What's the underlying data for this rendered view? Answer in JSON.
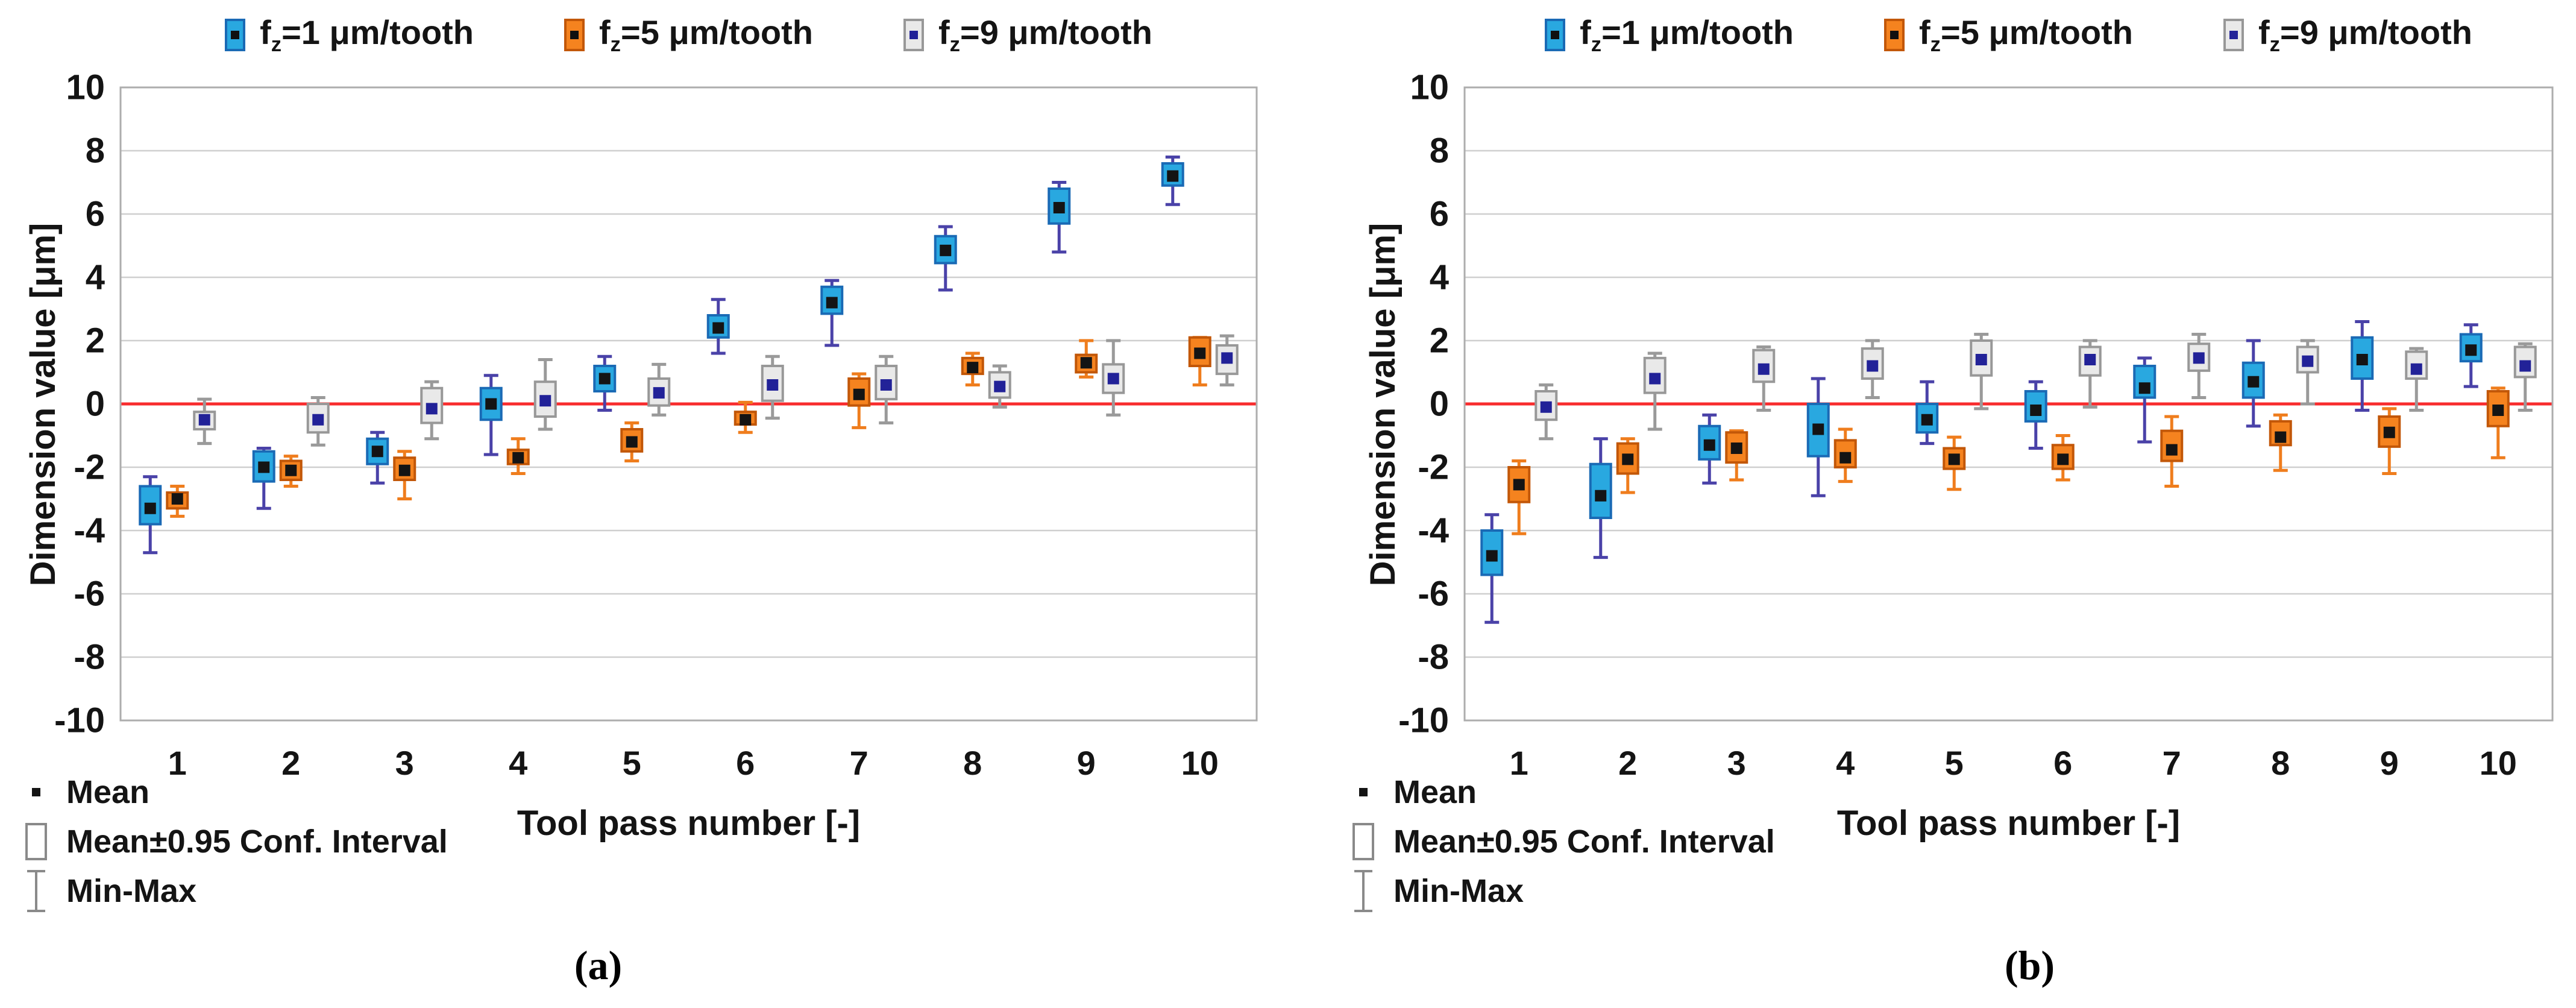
{
  "figure": {
    "captions": {
      "a": "(a)",
      "b": "(b)"
    },
    "colors": {
      "reference_line": "#f82c2e",
      "gridline": "#cfcfcf",
      "plot_border": "#adadad",
      "text": "#141414"
    }
  },
  "annotations": {
    "mean": "Mean",
    "ci": "Mean±0.95 Conf. Interval",
    "minmax": "Min-Max"
  },
  "chart_data": [
    {
      "type": "box",
      "panel": "a",
      "caption": "(a)",
      "xlabel": "Tool pass number [-]",
      "ylabel": "Dimension value [μm]",
      "ylim": [
        -10,
        10
      ],
      "yticks": [
        10,
        8,
        6,
        4,
        2,
        0,
        -2,
        -4,
        -6,
        -8,
        -10
      ],
      "xticks": [
        1,
        2,
        3,
        4,
        5,
        6,
        7,
        8,
        9,
        10
      ],
      "grid": "horizontal",
      "legend_position": "top",
      "reference_line_y": 0,
      "points_columns": [
        "pass",
        "mean",
        "ci_low",
        "ci_high",
        "min",
        "max"
      ],
      "series": [
        {
          "key": "fz1",
          "label_sym": "f",
          "label_sub": "z",
          "label_rest": "=1 μm/tooth",
          "fill": "#29a8e0",
          "edge": "#1a6ab5",
          "whisker": "#4a42a8",
          "mean_color": "#141414",
          "points": [
            [
              1,
              -3.3,
              -3.8,
              -2.6,
              -4.7,
              -2.3
            ],
            [
              2,
              -2.0,
              -2.45,
              -1.5,
              -3.3,
              -1.4
            ],
            [
              3,
              -1.5,
              -1.9,
              -1.1,
              -2.5,
              -0.9
            ],
            [
              4,
              0.0,
              -0.5,
              0.5,
              -1.6,
              0.9
            ],
            [
              5,
              0.8,
              0.4,
              1.2,
              -0.2,
              1.5
            ],
            [
              6,
              2.4,
              2.1,
              2.8,
              1.6,
              3.3
            ],
            [
              7,
              3.2,
              2.85,
              3.7,
              1.85,
              3.9
            ],
            [
              8,
              4.85,
              4.45,
              5.3,
              3.6,
              5.6
            ],
            [
              9,
              6.2,
              5.7,
              6.8,
              4.8,
              7.0
            ],
            [
              10,
              7.2,
              6.9,
              7.6,
              6.3,
              7.8
            ]
          ]
        },
        {
          "key": "fz5",
          "label_sym": "f",
          "label_sub": "z",
          "label_rest": "=5 μm/tooth",
          "fill": "#f5831f",
          "edge": "#c25708",
          "whisker": "#ef7d1d",
          "mean_color": "#141414",
          "points": [
            [
              1,
              -3.0,
              -3.3,
              -2.8,
              -3.55,
              -2.6
            ],
            [
              2,
              -2.1,
              -2.4,
              -1.8,
              -2.6,
              -1.65
            ],
            [
              3,
              -2.1,
              -2.4,
              -1.7,
              -3.0,
              -1.5
            ],
            [
              4,
              -1.7,
              -1.9,
              -1.45,
              -2.2,
              -1.1
            ],
            [
              5,
              -1.2,
              -1.5,
              -0.8,
              -1.8,
              -0.6
            ],
            [
              6,
              -0.5,
              -0.65,
              -0.25,
              -0.9,
              0.05
            ],
            [
              7,
              0.3,
              -0.05,
              0.8,
              -0.75,
              0.95
            ],
            [
              8,
              1.15,
              0.95,
              1.45,
              0.6,
              1.6
            ],
            [
              9,
              1.3,
              1.0,
              1.55,
              0.85,
              2.0
            ],
            [
              10,
              1.6,
              1.2,
              2.1,
              0.6,
              2.1
            ]
          ]
        },
        {
          "key": "fz9",
          "label_sym": "f",
          "label_sub": "z",
          "label_rest": "=9 μm/tooth",
          "fill": "#e9e9e9",
          "edge": "#989898",
          "whisker": "#9a9a9a",
          "mean_color": "#222298",
          "points": [
            [
              1,
              -0.5,
              -0.8,
              -0.25,
              -1.25,
              0.15
            ],
            [
              2,
              -0.5,
              -0.9,
              0.0,
              -1.3,
              0.2
            ],
            [
              3,
              -0.15,
              -0.6,
              0.5,
              -1.1,
              0.7
            ],
            [
              4,
              0.1,
              -0.4,
              0.7,
              -0.8,
              1.4
            ],
            [
              5,
              0.35,
              -0.05,
              0.8,
              -0.35,
              1.25
            ],
            [
              6,
              0.6,
              0.1,
              1.2,
              -0.45,
              1.5
            ],
            [
              7,
              0.6,
              0.15,
              1.2,
              -0.6,
              1.5
            ],
            [
              8,
              0.55,
              0.2,
              1.0,
              -0.1,
              1.2
            ],
            [
              9,
              0.8,
              0.35,
              1.25,
              -0.35,
              2.0
            ],
            [
              10,
              1.45,
              0.95,
              1.85,
              0.6,
              2.15
            ]
          ]
        }
      ]
    },
    {
      "type": "box",
      "panel": "b",
      "caption": "(b)",
      "xlabel": "Tool pass number [-]",
      "ylabel": "Dimension value [μm]",
      "ylim": [
        -10,
        10
      ],
      "yticks": [
        10,
        8,
        6,
        4,
        2,
        0,
        -2,
        -4,
        -6,
        -8,
        -10
      ],
      "xticks": [
        1,
        2,
        3,
        4,
        5,
        6,
        7,
        8,
        9,
        10
      ],
      "grid": "horizontal",
      "legend_position": "top",
      "reference_line_y": 0,
      "points_columns": [
        "pass",
        "mean",
        "ci_low",
        "ci_high",
        "min",
        "max"
      ],
      "series": [
        {
          "key": "fz1",
          "label_sym": "f",
          "label_sub": "z",
          "label_rest": "=1 μm/tooth",
          "fill": "#29a8e0",
          "edge": "#1a6ab5",
          "whisker": "#4a42a8",
          "mean_color": "#141414",
          "points": [
            [
              1,
              -4.8,
              -5.4,
              -4.0,
              -6.9,
              -3.5
            ],
            [
              2,
              -2.9,
              -3.6,
              -1.9,
              -4.85,
              -1.1
            ],
            [
              3,
              -1.3,
              -1.75,
              -0.7,
              -2.5,
              -0.35
            ],
            [
              4,
              -0.8,
              -1.65,
              0.0,
              -2.9,
              0.8
            ],
            [
              5,
              -0.5,
              -0.9,
              0.0,
              -1.25,
              0.7
            ],
            [
              6,
              -0.2,
              -0.55,
              0.4,
              -1.4,
              0.7
            ],
            [
              7,
              0.5,
              0.2,
              1.2,
              -1.2,
              1.45
            ],
            [
              8,
              0.7,
              0.2,
              1.3,
              -0.7,
              2.0
            ],
            [
              9,
              1.4,
              0.8,
              2.1,
              -0.2,
              2.6
            ],
            [
              10,
              1.7,
              1.35,
              2.2,
              0.55,
              2.5
            ]
          ]
        },
        {
          "key": "fz5",
          "label_sym": "f",
          "label_sub": "z",
          "label_rest": "=5 μm/tooth",
          "fill": "#f5831f",
          "edge": "#c25708",
          "whisker": "#ef7d1d",
          "mean_color": "#141414",
          "points": [
            [
              1,
              -2.55,
              -3.1,
              -2.0,
              -4.1,
              -1.8
            ],
            [
              2,
              -1.75,
              -2.2,
              -1.25,
              -2.8,
              -1.1
            ],
            [
              3,
              -1.4,
              -1.85,
              -0.9,
              -2.4,
              -0.85
            ],
            [
              4,
              -1.7,
              -2.0,
              -1.15,
              -2.45,
              -0.8
            ],
            [
              5,
              -1.75,
              -2.05,
              -1.4,
              -2.7,
              -1.05
            ],
            [
              6,
              -1.75,
              -2.05,
              -1.3,
              -2.4,
              -1.0
            ],
            [
              7,
              -1.45,
              -1.8,
              -0.85,
              -2.6,
              -0.4
            ],
            [
              8,
              -1.05,
              -1.3,
              -0.55,
              -2.1,
              -0.35
            ],
            [
              9,
              -0.9,
              -1.35,
              -0.4,
              -2.2,
              -0.15
            ],
            [
              10,
              -0.2,
              -0.7,
              0.4,
              -1.7,
              0.5
            ]
          ]
        },
        {
          "key": "fz9",
          "label_sym": "f",
          "label_sub": "z",
          "label_rest": "=9 μm/tooth",
          "fill": "#e9e9e9",
          "edge": "#989898",
          "whisker": "#9a9a9a",
          "mean_color": "#222298",
          "points": [
            [
              1,
              -0.1,
              -0.5,
              0.4,
              -1.1,
              0.6
            ],
            [
              2,
              0.8,
              0.35,
              1.45,
              -0.8,
              1.6
            ],
            [
              3,
              1.1,
              0.7,
              1.7,
              -0.2,
              1.8
            ],
            [
              4,
              1.2,
              0.8,
              1.75,
              0.2,
              2.0
            ],
            [
              5,
              1.4,
              0.9,
              2.0,
              -0.15,
              2.2
            ],
            [
              6,
              1.4,
              0.9,
              1.8,
              -0.1,
              2.0
            ],
            [
              7,
              1.45,
              1.05,
              1.9,
              0.2,
              2.2
            ],
            [
              8,
              1.35,
              1.0,
              1.8,
              0.0,
              2.0
            ],
            [
              9,
              1.1,
              0.8,
              1.65,
              -0.2,
              1.75
            ],
            [
              10,
              1.2,
              0.85,
              1.8,
              -0.2,
              1.9
            ]
          ]
        }
      ]
    }
  ]
}
